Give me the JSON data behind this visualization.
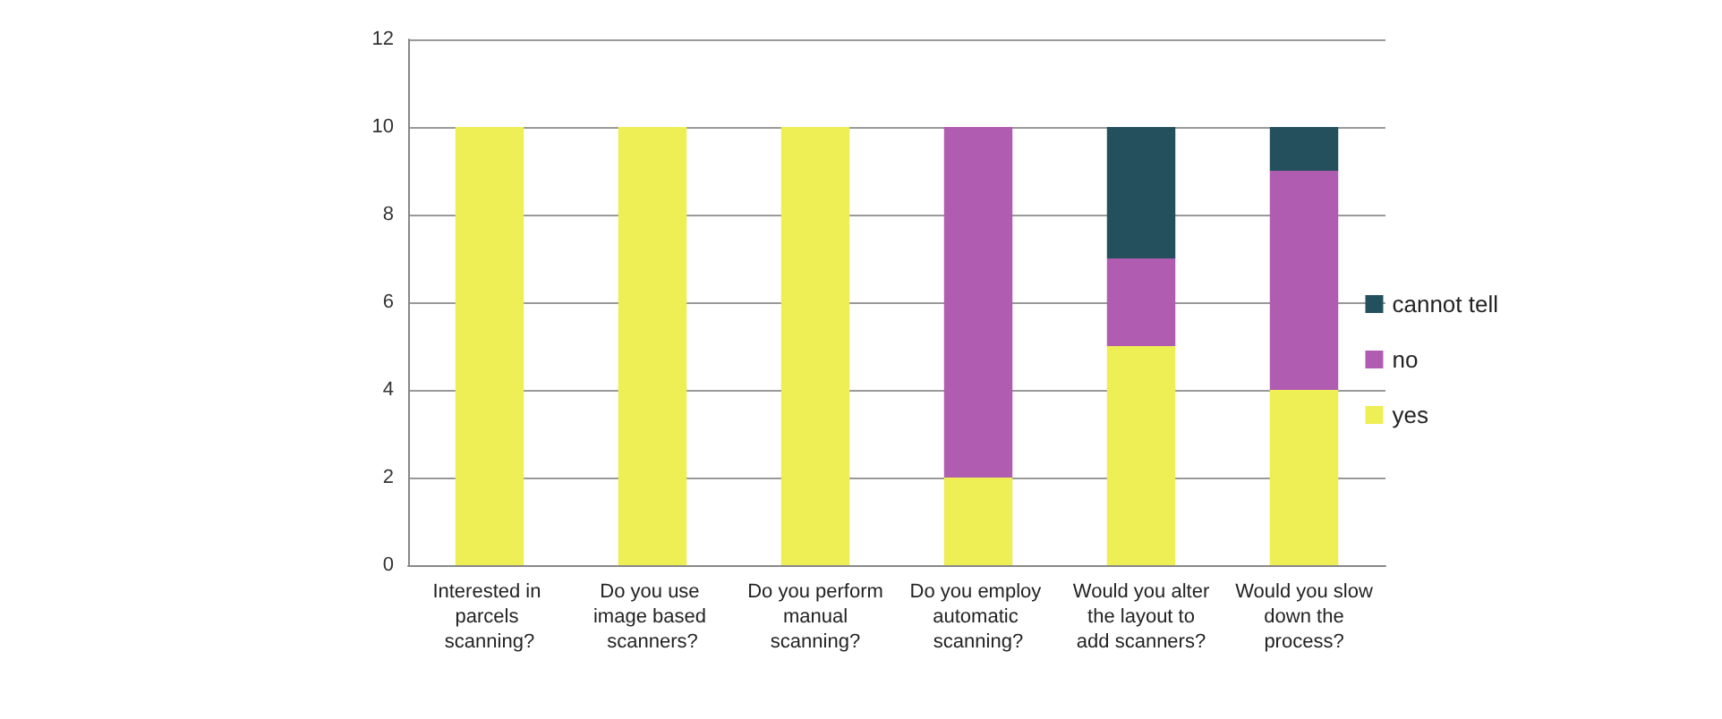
{
  "chart_data": {
    "type": "bar",
    "stacked": true,
    "categories": [
      "Interested in parcels scanning?",
      "Do you use image based scanners?",
      "Do you perform manual scanning?",
      "Do you employ automatic scanning?",
      "Would you alter the layout to add scanners?",
      "Would you slow down the process?"
    ],
    "series": [
      {
        "name": "yes",
        "color": "#eeee55",
        "values": [
          10,
          10,
          10,
          2,
          5,
          4
        ]
      },
      {
        "name": "no",
        "color": "#b05cb0",
        "values": [
          0,
          0,
          0,
          8,
          2,
          5
        ]
      },
      {
        "name": "cannot tell",
        "color": "#24505e",
        "values": [
          0,
          0,
          0,
          0,
          3,
          1
        ]
      }
    ],
    "ylim": [
      0,
      12
    ],
    "yticks": [
      0,
      2,
      4,
      6,
      8,
      10,
      12
    ],
    "grid": "y",
    "legend": "right"
  }
}
